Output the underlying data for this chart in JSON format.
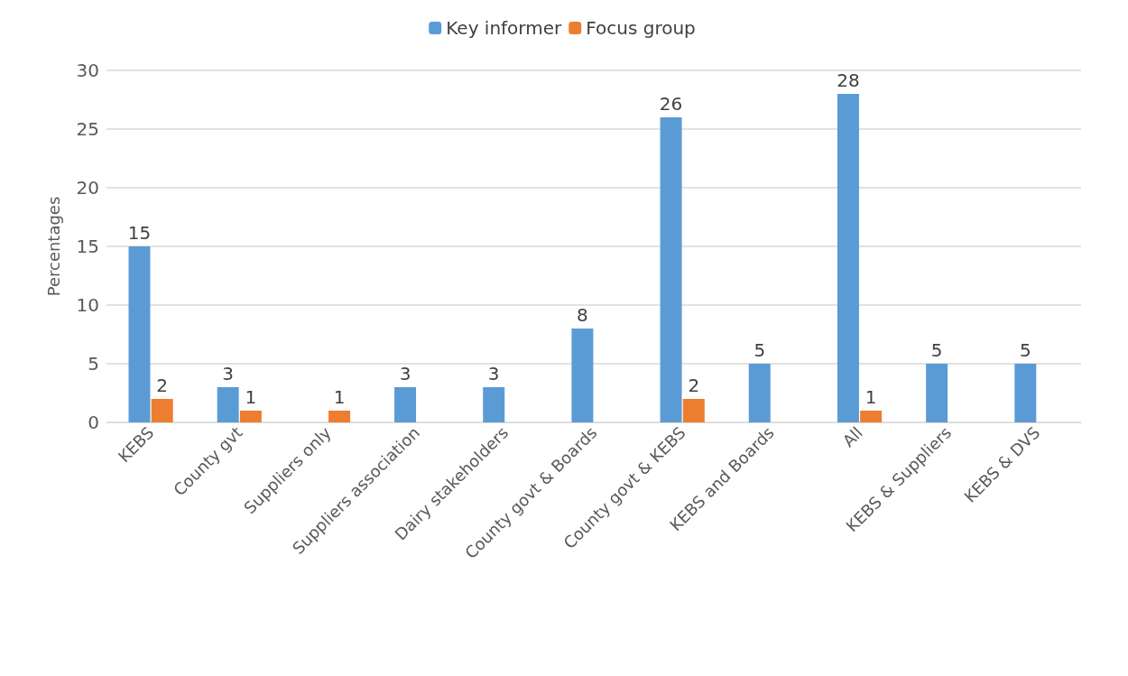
{
  "chart_data": {
    "type": "bar",
    "ylabel": "Percentages",
    "categories": [
      "KEBS",
      "County gvt",
      "Suppliers only",
      "Suppliers association",
      "Dairy stakeholders",
      "County govt & Boards",
      "County govt & KEBS",
      "KEBS and Boards",
      "All",
      "KEBS & Suppliers",
      "KEBS & DVS"
    ],
    "series": [
      {
        "name": "Key informer",
        "color": "#5b9bd5",
        "values": [
          15,
          3,
          null,
          3,
          3,
          8,
          26,
          5,
          28,
          5,
          5
        ]
      },
      {
        "name": "Focus group",
        "color": "#ed7d31",
        "values": [
          2,
          1,
          1,
          null,
          null,
          null,
          2,
          null,
          1,
          null,
          null
        ]
      }
    ],
    "ylim": [
      0,
      30
    ],
    "yticks": [
      0,
      5,
      10,
      15,
      20,
      25,
      30
    ],
    "grid": "y",
    "legend": "top",
    "data_labels": true
  }
}
